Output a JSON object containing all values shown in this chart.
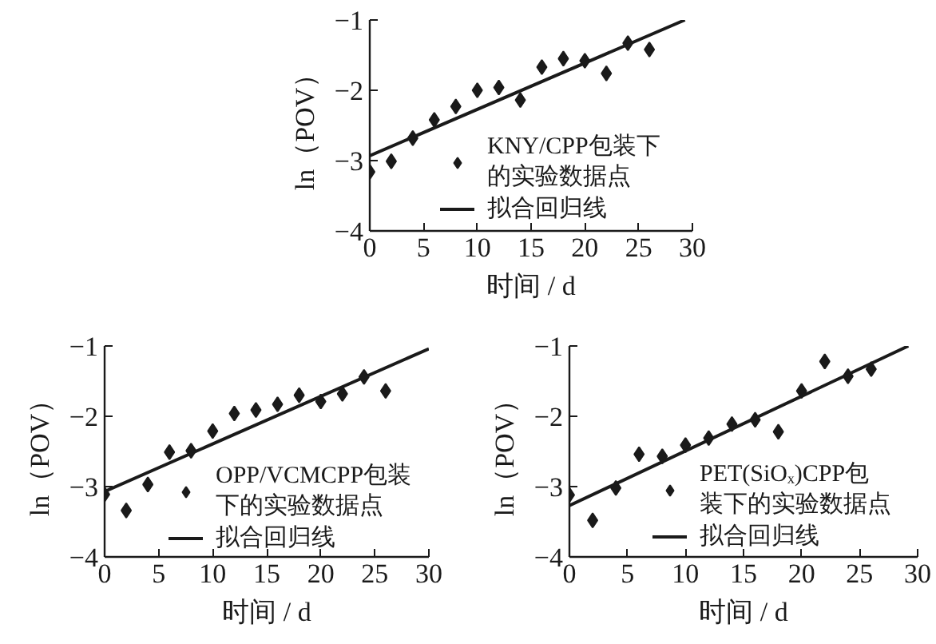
{
  "chart_data": [
    {
      "type": "scatter",
      "xlabel": "时间 / d",
      "ylabel": "ln（POV）",
      "xlim": [
        0,
        30
      ],
      "ylim": [
        -4,
        -1
      ],
      "xticks": [
        0,
        5,
        10,
        15,
        20,
        25,
        30
      ],
      "yticks": [
        -4,
        -3,
        -2,
        -1
      ],
      "legend": "bottom right",
      "series": [
        {
          "name": "KNY/CPP包装下的实验数据点",
          "color": "#1a1a1a",
          "marker": "diamond",
          "x": [
            0,
            2,
            4,
            6,
            8,
            10,
            12,
            14,
            16,
            18,
            20,
            22,
            24,
            26
          ],
          "values": [
            -3.16,
            -3.01,
            -2.68,
            -2.42,
            -2.23,
            -2.0,
            -1.96,
            -2.14,
            -1.67,
            -1.55,
            -1.58,
            -1.76,
            -1.33,
            -1.42
          ]
        },
        {
          "name": "拟合回归线",
          "type": "line",
          "line_style": "solid",
          "color": "#1a1a1a",
          "x": [
            0,
            29.3
          ],
          "values": [
            -2.93,
            -1.0
          ]
        }
      ]
    },
    {
      "type": "scatter",
      "xlabel": "时间 / d",
      "ylabel": "ln（POV）",
      "xlim": [
        0,
        30
      ],
      "ylim": [
        -4,
        -1
      ],
      "xticks": [
        0,
        5,
        10,
        15,
        20,
        25,
        30
      ],
      "yticks": [
        -4,
        -3,
        -2,
        -1
      ],
      "legend": "bottom right",
      "series": [
        {
          "name": "OPP/VCMCPP包装下的实验数据点",
          "color": "#1a1a1a",
          "marker": "diamond",
          "x": [
            0,
            2,
            4,
            6,
            8,
            10,
            12,
            14,
            16,
            18,
            20,
            22,
            24,
            26
          ],
          "values": [
            -3.11,
            -3.34,
            -2.97,
            -2.51,
            -2.49,
            -2.21,
            -1.96,
            -1.91,
            -1.83,
            -1.7,
            -1.79,
            -1.68,
            -1.44,
            -1.64
          ]
        },
        {
          "name": "拟合回归线",
          "type": "line",
          "line_style": "solid",
          "color": "#1a1a1a",
          "x": [
            0,
            30
          ],
          "values": [
            -3.07,
            -1.04
          ]
        }
      ]
    },
    {
      "type": "scatter",
      "xlabel": "时间 / d",
      "ylabel": "ln（POV）",
      "xlim": [
        0,
        30
      ],
      "ylim": [
        -4,
        -1
      ],
      "xticks": [
        0,
        5,
        10,
        15,
        20,
        25,
        30
      ],
      "yticks": [
        -4,
        -3,
        -2,
        -1
      ],
      "legend": "bottom right",
      "series": [
        {
          "name": "PET(SiOₓ)CPP包装下的实验数据点",
          "color": "#1a1a1a",
          "marker": "diamond",
          "x": [
            0,
            2,
            4,
            6,
            8,
            10,
            12,
            14,
            16,
            18,
            20,
            22,
            24,
            26
          ],
          "values": [
            -3.12,
            -3.48,
            -3.02,
            -2.54,
            -2.57,
            -2.41,
            -2.31,
            -2.11,
            -2.05,
            -2.22,
            -1.64,
            -1.22,
            -1.43,
            -1.33
          ]
        },
        {
          "name": "拟合回归线",
          "type": "line",
          "line_style": "solid",
          "color": "#1a1a1a",
          "x": [
            0,
            29.2
          ],
          "values": [
            -3.27,
            -1.0
          ]
        }
      ]
    }
  ]
}
